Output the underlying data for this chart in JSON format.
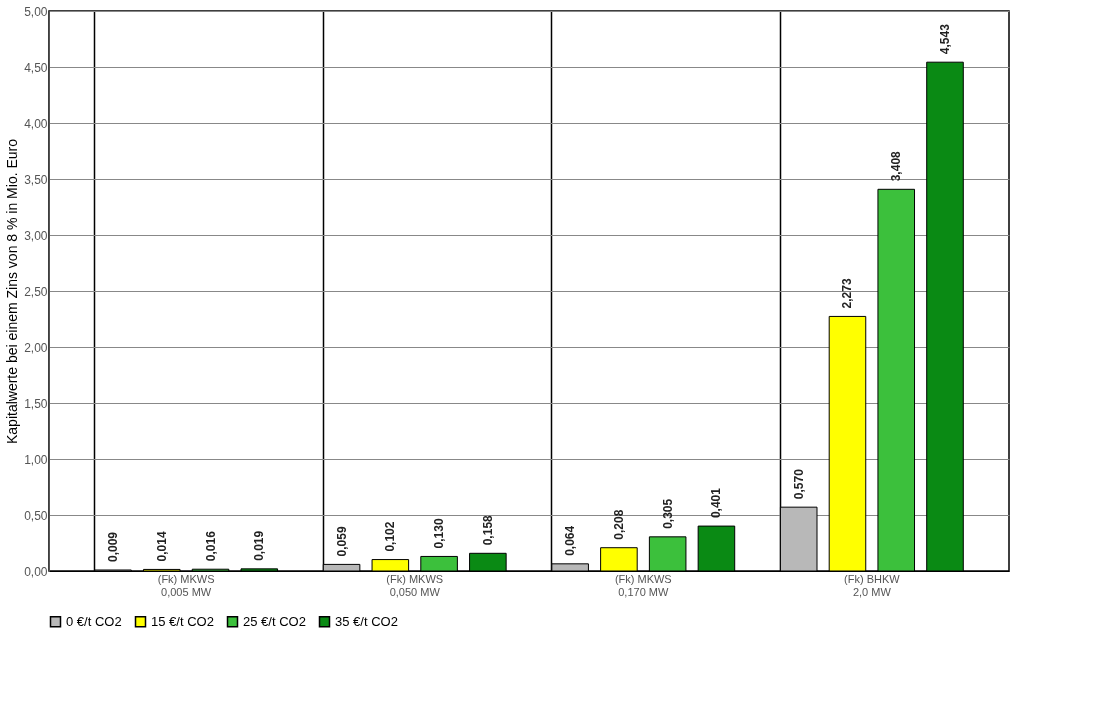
{
  "chart_data": {
    "type": "bar",
    "ylabel": "Kapitalwerte bei einem Zins von 8 % in Mio. Euro",
    "categories": [
      "(Fk) MKWS\n0,005 MW",
      "(Fk) MKWS\n0,050 MW",
      "(Fk) MKWS\n0,170 MW",
      "(Fk) BHKW\n2,0 MW"
    ],
    "series": [
      {
        "name": "0 €/t CO2",
        "color": "#b8b8b8",
        "values": [
          0.009,
          0.059,
          0.064,
          0.57
        ],
        "value_labels": [
          "0,009",
          "0,059",
          "0,064",
          "0,570"
        ]
      },
      {
        "name": "15 €/t CO2",
        "color": "#ffff00",
        "values": [
          0.014,
          0.102,
          0.208,
          2.273
        ],
        "value_labels": [
          "0,014",
          "0,102",
          "0,208",
          "2,273"
        ]
      },
      {
        "name": "25 €/t CO2",
        "color": "#3cc03c",
        "values": [
          0.016,
          0.13,
          0.305,
          3.408
        ],
        "value_labels": [
          "0,016",
          "0,130",
          "0,305",
          "3,408"
        ]
      },
      {
        "name": "35 €/t CO2",
        "color": "#0a8a14",
        "values": [
          0.019,
          0.158,
          0.401,
          4.543
        ],
        "value_labels": [
          "0,019",
          "0,158",
          "0,401",
          "4,543"
        ]
      }
    ],
    "ylim": [
      0,
      5
    ],
    "yticks": [
      {
        "value": 0,
        "label": "0,00"
      },
      {
        "value": 0.5,
        "label": "0,50"
      },
      {
        "value": 1,
        "label": "1,00"
      },
      {
        "value": 1.5,
        "label": "1,50"
      },
      {
        "value": 2,
        "label": "2,00"
      },
      {
        "value": 2.5,
        "label": "2,50"
      },
      {
        "value": 3,
        "label": "3,00"
      },
      {
        "value": 3.5,
        "label": "3,50"
      },
      {
        "value": 4,
        "label": "4,00"
      },
      {
        "value": 4.5,
        "label": "4,50"
      },
      {
        "value": 5,
        "label": "5,00"
      }
    ],
    "grid": true,
    "legend": "bottom"
  }
}
